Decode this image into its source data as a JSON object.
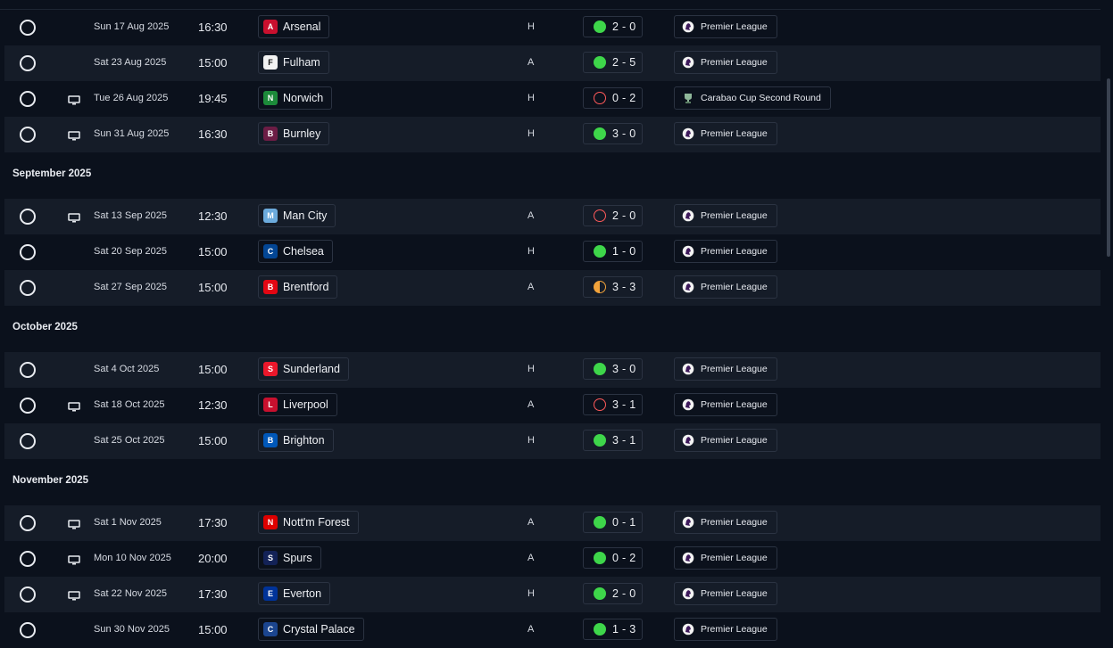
{
  "months": [
    {
      "label": null,
      "matches": [
        {
          "date": "Sun 17 Aug 2025",
          "time": "16:30",
          "team": "Arsenal",
          "crest_color": "#c8102e",
          "venue": "H",
          "result": "W",
          "score": "2 - 0",
          "competition": "Premier League",
          "tv": false
        },
        {
          "date": "Sat 23 Aug 2025",
          "time": "15:00",
          "team": "Fulham",
          "crest_color": "#f2f2f2",
          "venue": "A",
          "result": "W",
          "score": "2 - 5",
          "competition": "Premier League",
          "tv": false
        },
        {
          "date": "Tue 26 Aug 2025",
          "time": "19:45",
          "team": "Norwich",
          "crest_color": "#1c8a3a",
          "venue": "H",
          "result": "L",
          "score": "0 - 2",
          "competition": "Carabao Cup Second Round",
          "tv": true
        },
        {
          "date": "Sun 31 Aug 2025",
          "time": "16:30",
          "team": "Burnley",
          "crest_color": "#6c1d45",
          "venue": "H",
          "result": "W",
          "score": "3 - 0",
          "competition": "Premier League",
          "tv": true
        }
      ]
    },
    {
      "label": "September 2025",
      "matches": [
        {
          "date": "Sat 13 Sep 2025",
          "time": "12:30",
          "team": "Man City",
          "crest_color": "#6cabdd",
          "venue": "A",
          "result": "L",
          "score": "2 - 0",
          "competition": "Premier League",
          "tv": true
        },
        {
          "date": "Sat 20 Sep 2025",
          "time": "15:00",
          "team": "Chelsea",
          "crest_color": "#034694",
          "venue": "H",
          "result": "W",
          "score": "1 - 0",
          "competition": "Premier League",
          "tv": false
        },
        {
          "date": "Sat 27 Sep 2025",
          "time": "15:00",
          "team": "Brentford",
          "crest_color": "#e30613",
          "venue": "A",
          "result": "D",
          "score": "3 - 3",
          "competition": "Premier League",
          "tv": false
        }
      ]
    },
    {
      "label": "October 2025",
      "matches": [
        {
          "date": "Sat 4 Oct 2025",
          "time": "15:00",
          "team": "Sunderland",
          "crest_color": "#eb172b",
          "venue": "H",
          "result": "W",
          "score": "3 - 0",
          "competition": "Premier League",
          "tv": false
        },
        {
          "date": "Sat 18 Oct 2025",
          "time": "12:30",
          "team": "Liverpool",
          "crest_color": "#c8102e",
          "venue": "A",
          "result": "L",
          "score": "3 - 1",
          "competition": "Premier League",
          "tv": true
        },
        {
          "date": "Sat 25 Oct 2025",
          "time": "15:00",
          "team": "Brighton",
          "crest_color": "#0057b8",
          "venue": "H",
          "result": "W",
          "score": "3 - 1",
          "competition": "Premier League",
          "tv": false
        }
      ]
    },
    {
      "label": "November 2025",
      "matches": [
        {
          "date": "Sat 1 Nov 2025",
          "time": "17:30",
          "team": "Nott'm Forest",
          "crest_color": "#dd0000",
          "venue": "A",
          "result": "W",
          "score": "0 - 1",
          "competition": "Premier League",
          "tv": true
        },
        {
          "date": "Mon 10 Nov 2025",
          "time": "20:00",
          "team": "Spurs",
          "crest_color": "#132257",
          "venue": "A",
          "result": "W",
          "score": "0 - 2",
          "competition": "Premier League",
          "tv": true
        },
        {
          "date": "Sat 22 Nov 2025",
          "time": "17:30",
          "team": "Everton",
          "crest_color": "#003399",
          "venue": "H",
          "result": "W",
          "score": "2 - 0",
          "competition": "Premier League",
          "tv": true
        },
        {
          "date": "Sun 30 Nov 2025",
          "time": "15:00",
          "team": "Crystal Palace",
          "crest_color": "#1b458f",
          "venue": "A",
          "result": "W",
          "score": "1 - 3",
          "competition": "Premier League",
          "tv": false
        }
      ]
    }
  ],
  "colors": {
    "win": "#3ed64a",
    "loss": "#ff5a5a",
    "draw": "#f2a33b",
    "background": "#0b111c",
    "row_alt": "#151c28"
  },
  "icons": {
    "select": "radio-circle-icon",
    "tv": "tv-broadcast-icon",
    "premier_league": "premier-league-lion-icon",
    "carabao_cup": "carabao-cup-icon"
  }
}
